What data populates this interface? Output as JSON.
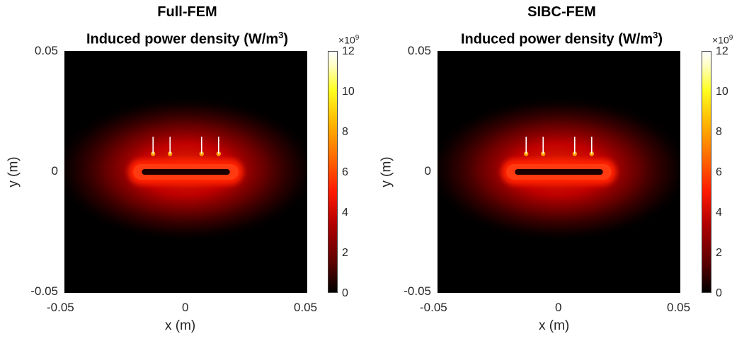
{
  "chart_data": [
    {
      "type": "heatmap",
      "title": "Full-FEM",
      "subtitle": "Induced power density (W/m",
      "subtitle_sup": "3",
      "subtitle_end": ")",
      "xlabel": "x (m)",
      "ylabel": "y (m)",
      "xlim": [
        -0.05,
        0.05
      ],
      "ylim": [
        -0.05,
        0.05
      ],
      "x_ticks": [
        "-0.05",
        "0",
        "0.05"
      ],
      "y_ticks": [
        "0.05",
        "0",
        "-0.05"
      ],
      "colorbar": {
        "min": 0,
        "max": 12,
        "ticks": [
          "12",
          "10",
          "8",
          "6",
          "4",
          "2",
          "0"
        ],
        "exponent_base": "×10",
        "exponent_power": "9",
        "colormap": "hot"
      },
      "conductor_x": [
        -0.0135,
        -0.0065,
        0.0065,
        0.0135
      ],
      "conductor_y_range": [
        0.0075,
        0.0145
      ],
      "ring": {
        "x_half": 0.019,
        "y": 0.0
      },
      "grid": false
    },
    {
      "type": "heatmap",
      "title": "SIBC-FEM",
      "subtitle": "Induced power density (W/m",
      "subtitle_sup": "3",
      "subtitle_end": ")",
      "xlabel": "x (m)",
      "ylabel": "y (m)",
      "xlim": [
        -0.05,
        0.05
      ],
      "ylim": [
        -0.05,
        0.05
      ],
      "x_ticks": [
        "-0.05",
        "0",
        "0.05"
      ],
      "y_ticks": [
        "0.05",
        "0",
        "-0.05"
      ],
      "colorbar": {
        "min": 0,
        "max": 12,
        "ticks": [
          "12",
          "10",
          "8",
          "6",
          "4",
          "2",
          "0"
        ],
        "exponent_base": "×10",
        "exponent_power": "9",
        "colormap": "hot"
      },
      "conductor_x": [
        -0.0135,
        -0.0065,
        0.0065,
        0.0135
      ],
      "conductor_y_range": [
        0.0075,
        0.0145
      ],
      "ring": {
        "x_half": 0.019,
        "y": 0.0
      },
      "grid": false
    }
  ]
}
